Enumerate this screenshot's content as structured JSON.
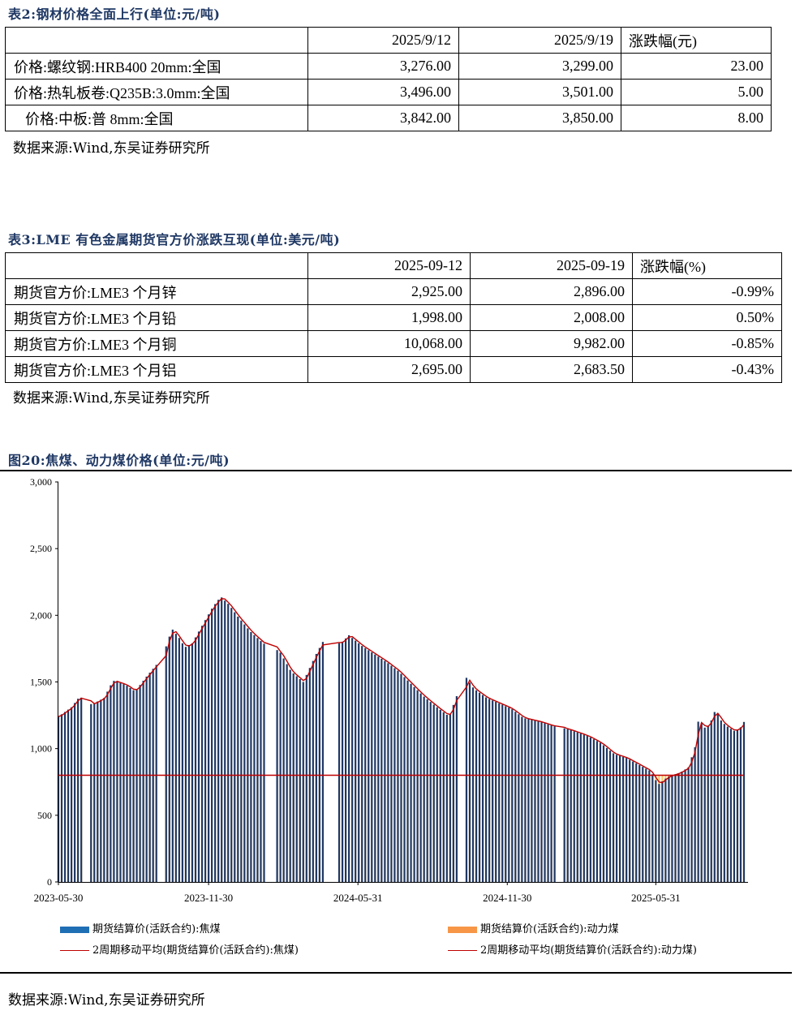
{
  "table2": {
    "title": "表2:钢材价格全面上行(单位:元/吨)",
    "headers": [
      "",
      "2025/9/12",
      "2025/9/19",
      "涨跌幅(元)"
    ],
    "rows": [
      [
        "价格:螺纹钢:HRB400 20mm:全国",
        "3,276.00",
        "3,299.00",
        "23.00"
      ],
      [
        "价格:热轧板卷:Q235B:3.0mm:全国",
        "3,496.00",
        "3,501.00",
        "5.00"
      ],
      [
        "价格:中板:普 8mm:全国",
        "3,842.00",
        "3,850.00",
        "8.00"
      ]
    ],
    "source": "数据来源:Wind,东吴证券研究所"
  },
  "table3": {
    "title": "表3:LME 有色金属期货官方价涨跌互现(单位:美元/吨)",
    "headers": [
      "",
      "2025-09-12",
      "2025-09-19",
      "涨跌幅(%)"
    ],
    "rows": [
      [
        "期货官方价:LME3 个月锌",
        "2,925.00",
        "2,896.00",
        "-0.99%"
      ],
      [
        "期货官方价:LME3 个月铅",
        "1,998.00",
        "2,008.00",
        "0.50%"
      ],
      [
        "期货官方价:LME3 个月铜",
        "10,068.00",
        "9,982.00",
        "-0.85%"
      ],
      [
        "期货官方价:LME3 个月铝",
        "2,695.00",
        "2,683.50",
        "-0.43%"
      ]
    ],
    "source": "数据来源:Wind,东吴证券研究所"
  },
  "figure20": {
    "title": "图20:焦煤、动力煤价格(单位:元/吨)",
    "source": "数据来源:Wind,东吴证券研究所"
  },
  "chart_data": {
    "type": "bar",
    "title": "",
    "xlabel": "",
    "ylabel": "",
    "ylim": [
      0,
      3000
    ],
    "yticks": [
      0,
      500,
      1000,
      1500,
      2000,
      2500,
      3000
    ],
    "ytick_labels": [
      "0",
      "500",
      "1,000",
      "1,500",
      "2,000",
      "2,500",
      "3,000"
    ],
    "x_start": "2023-05-30",
    "x_end": "2025-09-19",
    "xtick_labels": [
      "2023-05-30",
      "2023-11-30",
      "2024-05-31",
      "2024-11-30",
      "2025-05-31"
    ],
    "grid": false,
    "legend_position": "bottom",
    "colors": {
      "coking_coal": "#1f3864",
      "thermal_coal": "#ffc966",
      "ma_line": "#c00000",
      "legend_bar_blue": "#1f6fb5",
      "legend_bar_orange": "#f79646"
    },
    "gaps": [
      [
        "2023-07-01",
        "2023-07-08"
      ],
      [
        "2023-10-01",
        "2023-10-08"
      ],
      [
        "2024-02-10",
        "2024-02-18"
      ],
      [
        "2024-04-20",
        "2024-05-05"
      ],
      [
        "2024-10-01",
        "2024-10-08"
      ],
      [
        "2025-01-28",
        "2025-02-05"
      ]
    ],
    "series": [
      {
        "name": "期货结算价(活跃合约):焦煤",
        "keypoints": [
          [
            "2023-05-30",
            1240
          ],
          [
            "2023-06-15",
            1310
          ],
          [
            "2023-06-25",
            1390
          ],
          [
            "2023-07-10",
            1330
          ],
          [
            "2023-07-25",
            1380
          ],
          [
            "2023-08-05",
            1510
          ],
          [
            "2023-08-20",
            1480
          ],
          [
            "2023-09-01",
            1430
          ],
          [
            "2023-09-15",
            1540
          ],
          [
            "2023-09-30",
            1650
          ],
          [
            "2023-10-10",
            1780
          ],
          [
            "2023-10-16",
            1900
          ],
          [
            "2023-10-25",
            1830
          ],
          [
            "2023-11-01",
            1760
          ],
          [
            "2023-11-10",
            1790
          ],
          [
            "2023-11-20",
            1900
          ],
          [
            "2023-12-05",
            2060
          ],
          [
            "2023-12-15",
            2140
          ],
          [
            "2023-12-25",
            2080
          ],
          [
            "2024-01-05",
            1990
          ],
          [
            "2024-01-20",
            1880
          ],
          [
            "2024-02-05",
            1790
          ],
          [
            "2024-02-25",
            1730
          ],
          [
            "2024-03-10",
            1580
          ],
          [
            "2024-03-25",
            1500
          ],
          [
            "2024-04-10",
            1710
          ],
          [
            "2024-04-18",
            1800
          ],
          [
            "2024-05-10",
            1790
          ],
          [
            "2024-05-20",
            1850
          ],
          [
            "2024-06-05",
            1770
          ],
          [
            "2024-06-20",
            1710
          ],
          [
            "2024-07-05",
            1650
          ],
          [
            "2024-07-20",
            1580
          ],
          [
            "2024-08-05",
            1480
          ],
          [
            "2024-08-20",
            1390
          ],
          [
            "2024-09-05",
            1310
          ],
          [
            "2024-09-20",
            1240
          ],
          [
            "2024-09-28",
            1380
          ],
          [
            "2024-10-10",
            1540
          ],
          [
            "2024-10-20",
            1450
          ],
          [
            "2024-11-05",
            1380
          ],
          [
            "2024-11-20",
            1340
          ],
          [
            "2024-12-05",
            1300
          ],
          [
            "2024-12-20",
            1230
          ],
          [
            "2025-01-10",
            1200
          ],
          [
            "2025-01-25",
            1170
          ],
          [
            "2025-02-10",
            1150
          ],
          [
            "2025-02-25",
            1120
          ],
          [
            "2025-03-10",
            1090
          ],
          [
            "2025-03-25",
            1040
          ],
          [
            "2025-04-10",
            960
          ],
          [
            "2025-04-25",
            930
          ],
          [
            "2025-05-10",
            880
          ],
          [
            "2025-05-25",
            830
          ],
          [
            "2025-06-03",
            730
          ],
          [
            "2025-06-15",
            790
          ],
          [
            "2025-06-30",
            820
          ],
          [
            "2025-07-10",
            860
          ],
          [
            "2025-07-18",
            1010
          ],
          [
            "2025-07-23",
            1250
          ],
          [
            "2025-07-28",
            1150
          ],
          [
            "2025-08-05",
            1180
          ],
          [
            "2025-08-12",
            1290
          ],
          [
            "2025-08-20",
            1200
          ],
          [
            "2025-08-28",
            1160
          ],
          [
            "2025-09-05",
            1130
          ],
          [
            "2025-09-12",
            1160
          ],
          [
            "2025-09-19",
            1230
          ]
        ]
      },
      {
        "name": "期货结算价(活跃合约):动力煤",
        "keypoints": [
          [
            "2023-05-30",
            800
          ],
          [
            "2025-09-19",
            800
          ]
        ]
      },
      {
        "name": "2周期移动平均(期货结算价(活跃合约):焦煤)",
        "keypoints": []
      },
      {
        "name": "2周期移动平均(期货结算价(活跃合约):动力煤)",
        "keypoints": []
      }
    ]
  }
}
